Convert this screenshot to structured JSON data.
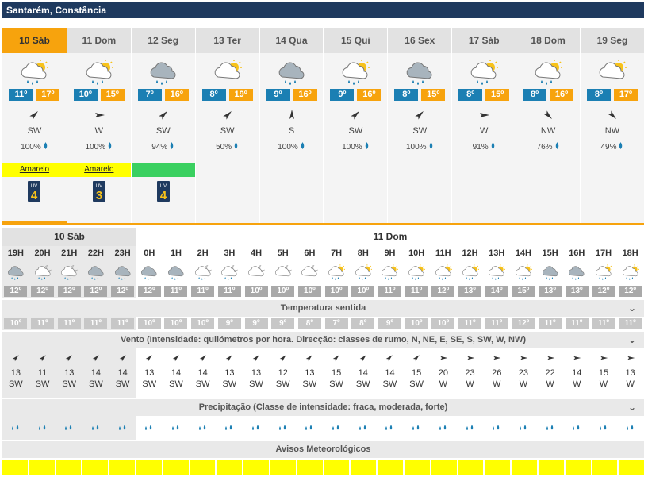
{
  "location": "Santarém, Constância",
  "days": [
    {
      "label": "10 Sáb",
      "icon": "rain-sun-icon",
      "min": "11º",
      "max": "17º",
      "dir": "SW",
      "rot": 225,
      "prob": "100%",
      "warning": "Amarelo",
      "warning_level": "yellow",
      "uv": "4"
    },
    {
      "label": "11 Dom",
      "icon": "rain-sun-icon",
      "min": "10º",
      "max": "15º",
      "dir": "W",
      "rot": 270,
      "prob": "100%",
      "warning": "Amarelo",
      "warning_level": "yellow",
      "uv": "3"
    },
    {
      "label": "12 Seg",
      "icon": "rain-cloud-icon",
      "min": "7º",
      "max": "16º",
      "dir": "SW",
      "rot": 225,
      "prob": "94%",
      "warning": "",
      "warning_level": "green",
      "uv": "4"
    },
    {
      "label": "13 Ter",
      "icon": "partly-cloudy-icon",
      "min": "8º",
      "max": "19º",
      "dir": "SW",
      "rot": 225,
      "prob": "50%",
      "warning": "",
      "warning_level": "none",
      "uv": ""
    },
    {
      "label": "14 Qua",
      "icon": "rain-cloud-icon",
      "min": "9º",
      "max": "16º",
      "dir": "S",
      "rot": 180,
      "prob": "100%",
      "warning": "",
      "warning_level": "none",
      "uv": ""
    },
    {
      "label": "15 Qui",
      "icon": "rain-sun-icon",
      "min": "9º",
      "max": "16º",
      "dir": "SW",
      "rot": 225,
      "prob": "100%",
      "warning": "",
      "warning_level": "none",
      "uv": ""
    },
    {
      "label": "16 Sex",
      "icon": "rain-cloud-icon",
      "min": "8º",
      "max": "15º",
      "dir": "SW",
      "rot": 225,
      "prob": "100%",
      "warning": "",
      "warning_level": "none",
      "uv": ""
    },
    {
      "label": "17 Sáb",
      "icon": "rain-sun-icon",
      "min": "8º",
      "max": "15º",
      "dir": "W",
      "rot": 270,
      "prob": "91%",
      "warning": "",
      "warning_level": "none",
      "uv": ""
    },
    {
      "label": "18 Dom",
      "icon": "rain-sun-icon",
      "min": "8º",
      "max": "16º",
      "dir": "NW",
      "rot": 315,
      "prob": "76%",
      "warning": "",
      "warning_level": "none",
      "uv": ""
    },
    {
      "label": "19 Seg",
      "icon": "partly-cloudy-icon",
      "min": "8º",
      "max": "17º",
      "dir": "NW",
      "rot": 315,
      "prob": "49%",
      "warning": "",
      "warning_level": "none",
      "uv": ""
    }
  ],
  "uv_label": "UV",
  "hourly_day1": "10 Sáb",
  "hourly_day2": "11 Dom",
  "hours": [
    "19H",
    "20H",
    "21H",
    "22H",
    "23H",
    "0H",
    "1H",
    "2H",
    "3H",
    "4H",
    "5H",
    "6H",
    "7H",
    "8H",
    "9H",
    "10H",
    "11H",
    "12H",
    "13H",
    "14H",
    "15H",
    "16H",
    "17H",
    "18H"
  ],
  "hour_icons": [
    "rain-cloud-icon",
    "rain-night-icon",
    "rain-night-icon",
    "rain-cloud-icon",
    "rain-cloud-icon",
    "rain-cloud-icon",
    "rain-cloud-icon",
    "rain-night-icon",
    "rain-night-icon",
    "cloud-night-icon",
    "cloud-night-icon",
    "cloud-night-icon",
    "rain-sun-icon",
    "rain-sun-icon",
    "rain-sun-icon",
    "rain-sun-icon",
    "rain-sun-icon",
    "rain-sun-icon",
    "rain-sun-icon",
    "rain-sun-icon",
    "rain-cloud-icon",
    "rain-cloud-icon",
    "rain-sun-icon",
    "rain-sun-icon"
  ],
  "hour_temps": [
    "12º",
    "12º",
    "12º",
    "12º",
    "12º",
    "12º",
    "11º",
    "11º",
    "11º",
    "10º",
    "10º",
    "10º",
    "10º",
    "10º",
    "11º",
    "11º",
    "12º",
    "13º",
    "14º",
    "15º",
    "13º",
    "13º",
    "12º",
    "12º"
  ],
  "felt_title": "Temperatura sentida",
  "felt": [
    "10º",
    "11º",
    "11º",
    "11º",
    "11º",
    "10º",
    "10º",
    "10º",
    "9º",
    "9º",
    "9º",
    "8º",
    "7º",
    "8º",
    "9º",
    "10º",
    "10º",
    "11º",
    "11º",
    "12º",
    "11º",
    "11º",
    "11º",
    "11º"
  ],
  "wind_title": "Vento (Intensidade: quilómetros por hora. Direcção: classes de rumo, N, NE, E, SE, S, SW, W, NW)",
  "wind_speed": [
    "13",
    "11",
    "13",
    "14",
    "14",
    "13",
    "14",
    "14",
    "13",
    "13",
    "12",
    "13",
    "15",
    "14",
    "14",
    "15",
    "20",
    "23",
    "26",
    "23",
    "22",
    "14",
    "15",
    "13"
  ],
  "wind_dir": [
    "SW",
    "SW",
    "SW",
    "SW",
    "SW",
    "SW",
    "SW",
    "SW",
    "SW",
    "SW",
    "SW",
    "SW",
    "SW",
    "SW",
    "SW",
    "SW",
    "W",
    "W",
    "W",
    "W",
    "W",
    "W",
    "W",
    "W"
  ],
  "prec_title": "Precipitação (Classe de intensidade: fraca, moderada, forte)",
  "prec_class": [
    "weak",
    "weak",
    "weak",
    "weak",
    "weak",
    "weak",
    "weak",
    "weak",
    "weak",
    "weak",
    "weak",
    "weak",
    "weak",
    "weak",
    "weak",
    "weak",
    "weak",
    "weak",
    "weak",
    "weak",
    "weak",
    "weak",
    "weak",
    "weak"
  ],
  "avisos_title": "Avisos Meteorológicos",
  "aviso_color": "#ffff00",
  "colors": {
    "accent": "#f7a30d",
    "min": "#1b7fb3",
    "header": "#1f3a5f",
    "drop": "#1b7fb3"
  }
}
